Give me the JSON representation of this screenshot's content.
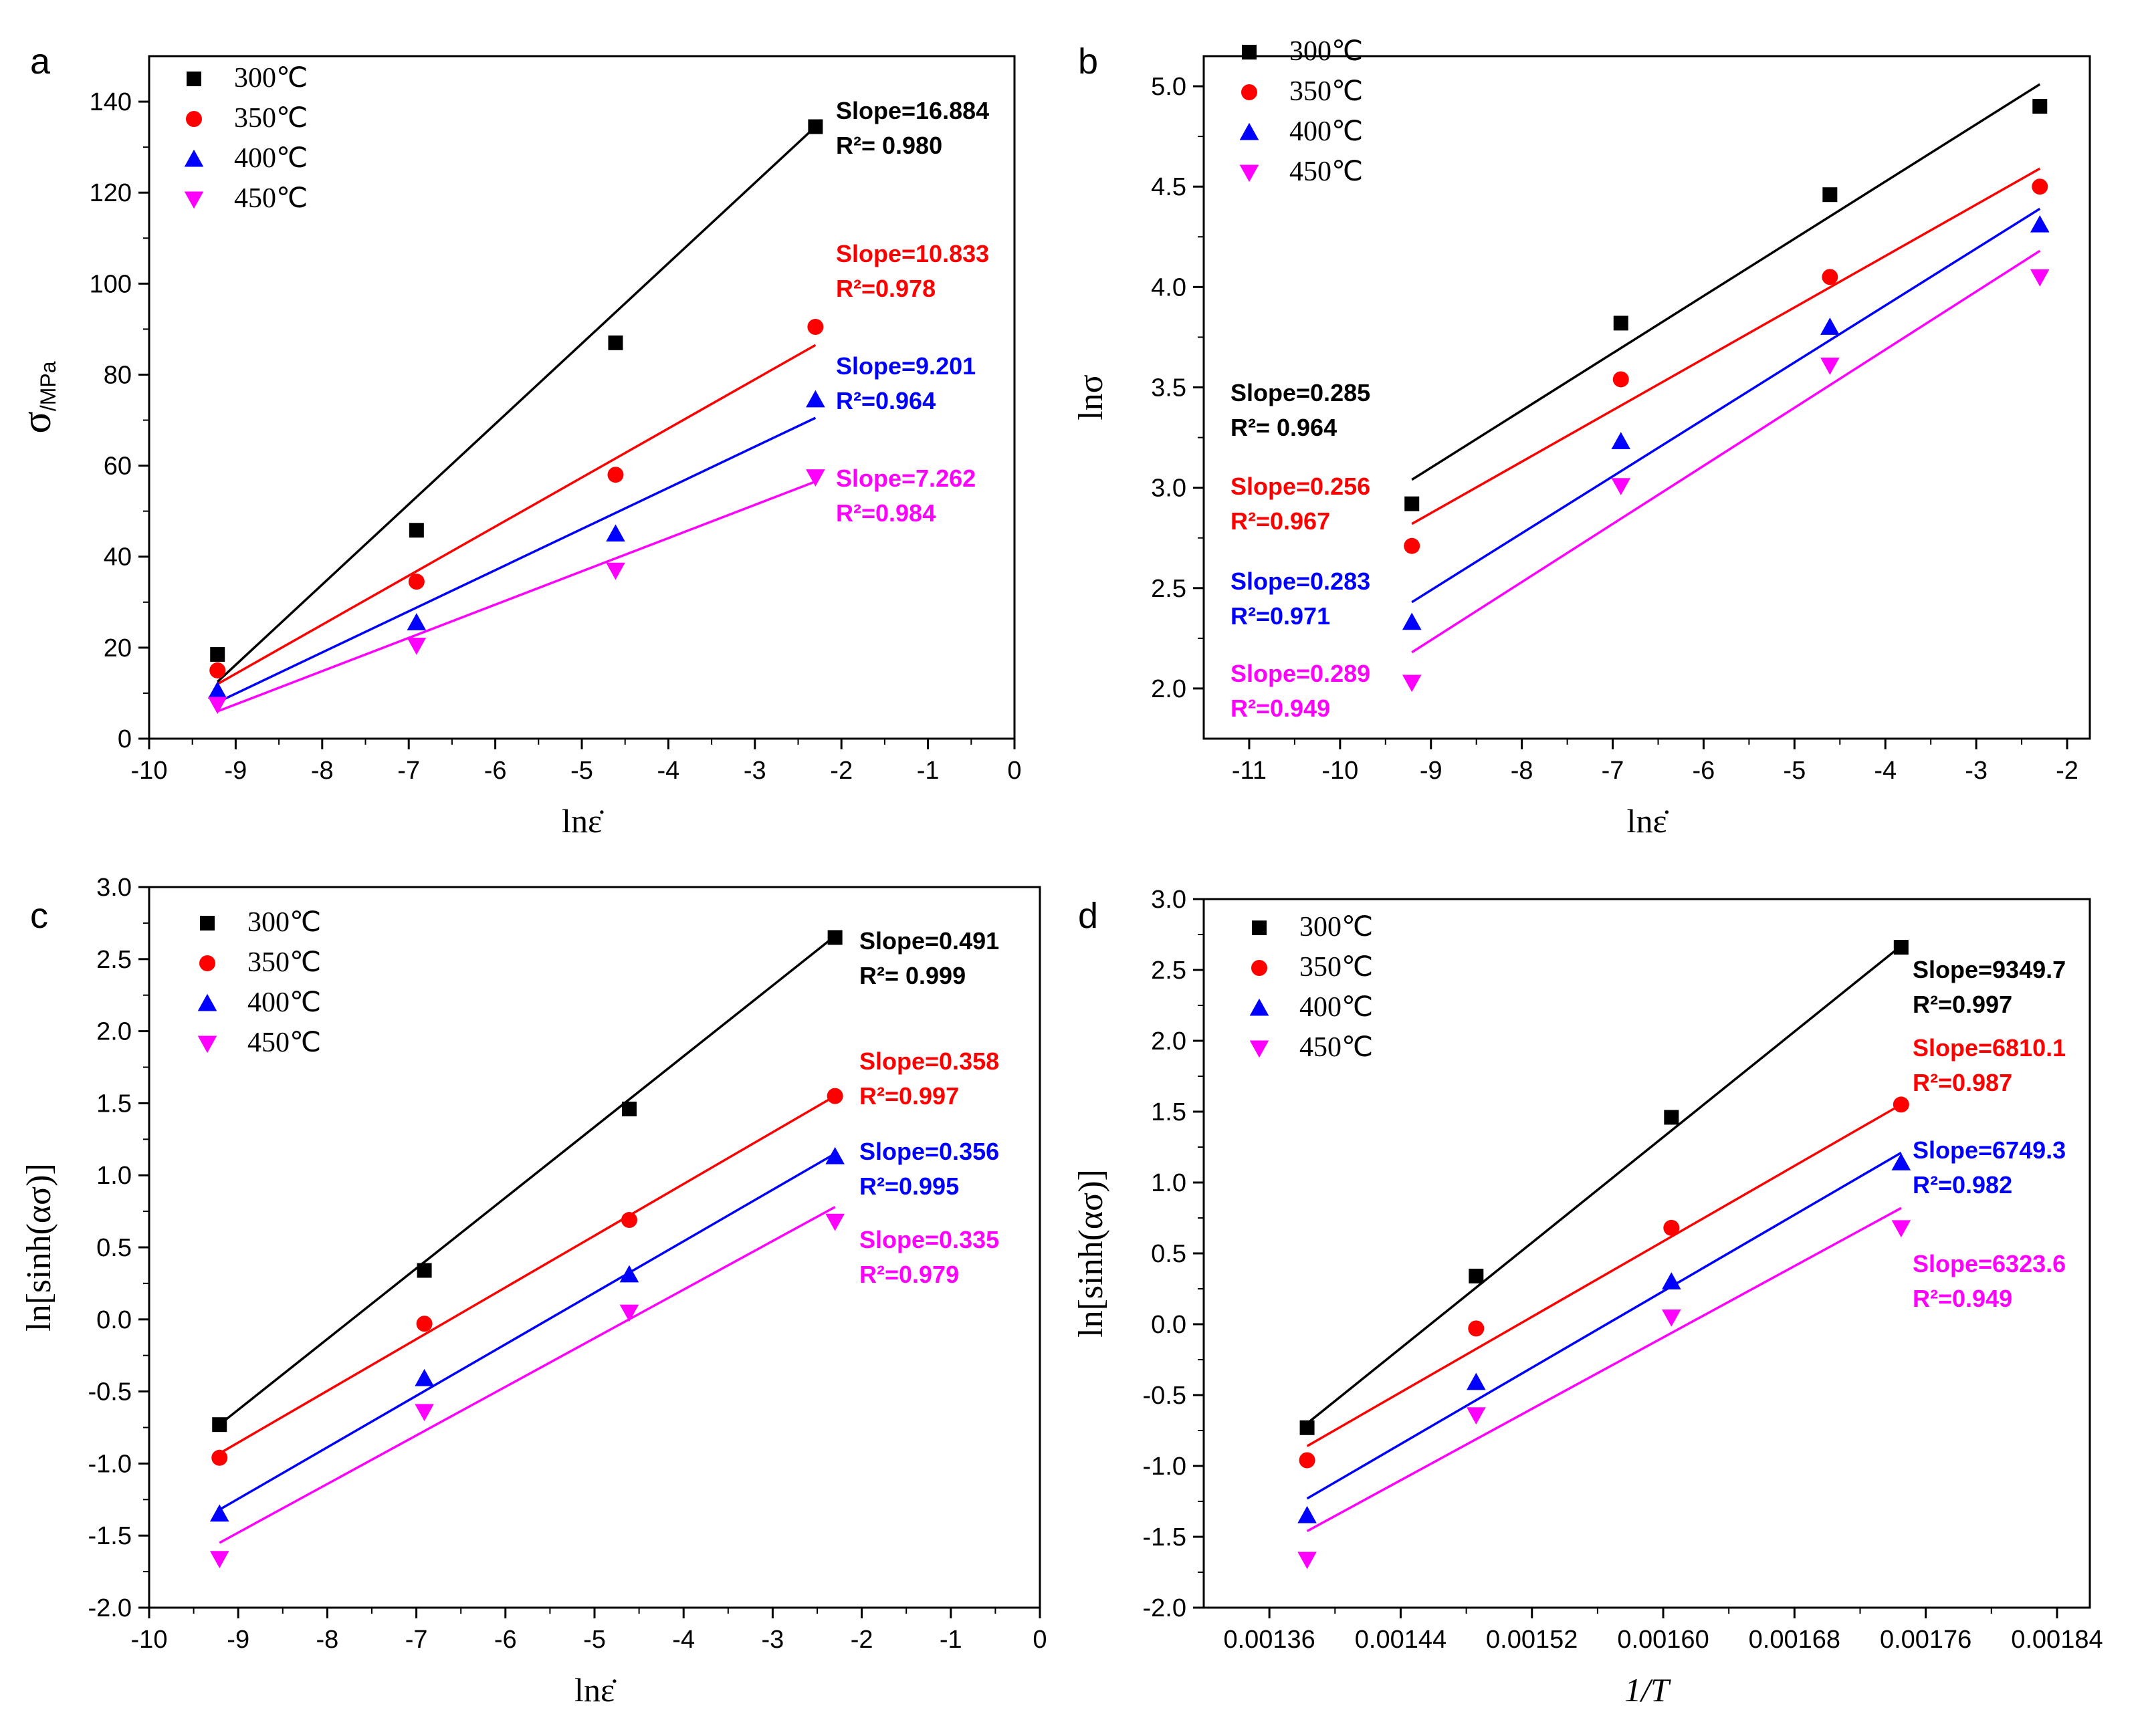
{
  "chart_data": [
    {
      "panel_label": "a",
      "type": "scatter",
      "xlabel": "lnε̇",
      "ylabel_main": "σ",
      "ylabel_unit": "/MPa",
      "xlim": [
        -10,
        0
      ],
      "ylim": [
        0,
        150
      ],
      "xticks": [
        -10,
        -9,
        -8,
        -7,
        -6,
        -5,
        -4,
        -3,
        -2,
        -1,
        0
      ],
      "yticks": [
        0,
        20,
        40,
        60,
        80,
        100,
        120,
        140
      ],
      "legend": [
        "300℃",
        "350℃",
        "400℃",
        "450℃"
      ],
      "series": [
        {
          "name": "300℃",
          "color": "#000000",
          "marker": "square",
          "x": [
            -9.21,
            -6.91,
            -4.61,
            -2.3
          ],
          "y": [
            18.5,
            45.8,
            87.0,
            134.5
          ],
          "fit": [
            [
              -9.21,
              12.5
            ],
            [
              -2.3,
              134.5
            ]
          ],
          "slope_label": "Slope=16.884",
          "r2_label": "R²= 0.980"
        },
        {
          "name": "350℃",
          "color": "#ff0000",
          "marker": "circle",
          "x": [
            -9.21,
            -6.91,
            -4.61,
            -2.3
          ],
          "y": [
            15.0,
            34.5,
            58.0,
            90.5
          ],
          "fit": [
            [
              -9.21,
              12.0
            ],
            [
              -2.3,
              86.5
            ]
          ],
          "slope_label": "Slope=10.833",
          "r2_label": "R²=0.978"
        },
        {
          "name": "400℃",
          "color": "#0000ff",
          "marker": "triangle-up",
          "x": [
            -9.21,
            -6.91,
            -4.61,
            -2.3
          ],
          "y": [
            10.5,
            25.5,
            45.0,
            74.5
          ],
          "fit": [
            [
              -9.21,
              8.0
            ],
            [
              -2.3,
              70.5
            ]
          ],
          "slope_label": "Slope=9.201",
          "r2_label": "R²=0.964"
        },
        {
          "name": "450℃",
          "color": "#ff00ff",
          "marker": "triangle-down",
          "x": [
            -9.21,
            -6.91,
            -4.61,
            -2.3
          ],
          "y": [
            7.5,
            20.5,
            37.0,
            57.5
          ],
          "fit": [
            [
              -9.21,
              6.0
            ],
            [
              -2.3,
              56.5
            ]
          ],
          "slope_label": "Slope=7.262",
          "r2_label": "R²=0.984"
        }
      ]
    },
    {
      "panel_label": "b",
      "type": "scatter",
      "xlabel": "lnε̇",
      "ylabel_main": "lnσ",
      "ylabel_unit": "",
      "xlim": [
        -11.5,
        -1.75
      ],
      "ylim": [
        1.75,
        5.15
      ],
      "xticks": [
        -11,
        -10,
        -9,
        -8,
        -7,
        -6,
        -5,
        -4,
        -3,
        -2
      ],
      "yticks": [
        2.0,
        2.5,
        3.0,
        3.5,
        4.0,
        4.5,
        5.0
      ],
      "legend": [
        "300℃",
        "350℃",
        "400℃",
        "450℃"
      ],
      "series": [
        {
          "name": "300℃",
          "color": "#000000",
          "marker": "square",
          "x": [
            -9.21,
            -6.91,
            -4.61,
            -2.3
          ],
          "y": [
            2.92,
            3.82,
            4.46,
            4.9
          ],
          "fit": [
            [
              -9.21,
              3.04
            ],
            [
              -2.3,
              5.01
            ]
          ],
          "slope_label": "Slope=0.285",
          "r2_label": "R²= 0.964"
        },
        {
          "name": "350℃",
          "color": "#ff0000",
          "marker": "circle",
          "x": [
            -9.21,
            -6.91,
            -4.61,
            -2.3
          ],
          "y": [
            2.71,
            3.54,
            4.05,
            4.5
          ],
          "fit": [
            [
              -9.21,
              2.82
            ],
            [
              -2.3,
              4.59
            ]
          ],
          "slope_label": "Slope=0.256",
          "r2_label": "R²=0.967"
        },
        {
          "name": "400℃",
          "color": "#0000ff",
          "marker": "triangle-up",
          "x": [
            -9.21,
            -6.91,
            -4.61,
            -2.3
          ],
          "y": [
            2.33,
            3.23,
            3.8,
            4.31
          ],
          "fit": [
            [
              -9.21,
              2.43
            ],
            [
              -2.3,
              4.39
            ]
          ],
          "slope_label": "Slope=0.283",
          "r2_label": "R²=0.971"
        },
        {
          "name": "450℃",
          "color": "#ff00ff",
          "marker": "triangle-down",
          "x": [
            -9.21,
            -6.91,
            -4.61,
            -2.3
          ],
          "y": [
            2.03,
            3.01,
            3.61,
            4.05
          ],
          "fit": [
            [
              -9.21,
              2.18
            ],
            [
              -2.3,
              4.18
            ]
          ],
          "slope_label": "Slope=0.289",
          "r2_label": "R²=0.949"
        }
      ]
    },
    {
      "panel_label": "c",
      "type": "scatter",
      "xlabel": "lnε̇",
      "ylabel_main": "ln[sinh(ασ)]",
      "ylabel_unit": "",
      "xlim": [
        -10,
        0
      ],
      "ylim": [
        -2.0,
        3.0
      ],
      "xticks": [
        -10,
        -9,
        -8,
        -7,
        -6,
        -5,
        -4,
        -3,
        -2,
        -1,
        0
      ],
      "yticks": [
        -2.0,
        -1.5,
        -1.0,
        -0.5,
        0.0,
        0.5,
        1.0,
        1.5,
        2.0,
        2.5,
        3.0
      ],
      "legend": [
        "300℃",
        "350℃",
        "400℃",
        "450℃"
      ],
      "series": [
        {
          "name": "300℃",
          "color": "#000000",
          "marker": "square",
          "x": [
            -9.21,
            -6.91,
            -4.61,
            -2.3
          ],
          "y": [
            -0.73,
            0.34,
            1.46,
            2.65
          ],
          "fit": [
            [
              -9.21,
              -0.73
            ],
            [
              -2.3,
              2.66
            ]
          ],
          "slope_label": "Slope=0.491",
          "r2_label": "R²= 0.999"
        },
        {
          "name": "350℃",
          "color": "#ff0000",
          "marker": "circle",
          "x": [
            -9.21,
            -6.91,
            -4.61,
            -2.3
          ],
          "y": [
            -0.96,
            -0.03,
            0.69,
            1.55
          ],
          "fit": [
            [
              -9.21,
              -0.93
            ],
            [
              -2.3,
              1.55
            ]
          ],
          "slope_label": "Slope=0.358",
          "r2_label": "R²=0.997"
        },
        {
          "name": "400℃",
          "color": "#0000ff",
          "marker": "triangle-up",
          "x": [
            -9.21,
            -6.91,
            -4.61,
            -2.3
          ],
          "y": [
            -1.35,
            -0.41,
            0.31,
            1.13
          ],
          "fit": [
            [
              -9.21,
              -1.32
            ],
            [
              -2.3,
              1.15
            ]
          ],
          "slope_label": "Slope=0.356",
          "r2_label": "R²=0.995"
        },
        {
          "name": "450℃",
          "color": "#ff00ff",
          "marker": "triangle-down",
          "x": [
            -9.21,
            -6.91,
            -4.61,
            -2.3
          ],
          "y": [
            -1.66,
            -0.64,
            0.05,
            0.68
          ],
          "fit": [
            [
              -9.21,
              -1.55
            ],
            [
              -2.3,
              0.78
            ]
          ],
          "slope_label": "Slope=0.335",
          "r2_label": "R²=0.979"
        }
      ]
    },
    {
      "panel_label": "d",
      "type": "scatter",
      "xlabel": "1/T",
      "ylabel_main": "ln[sinh(ασ)]",
      "ylabel_unit": "",
      "xlim": [
        0.00132,
        0.00186
      ],
      "ylim": [
        -2.0,
        3.0
      ],
      "xticks": [
        0.00136,
        0.00144,
        0.00152,
        0.0016,
        0.00168,
        0.00176,
        0.00184
      ],
      "xtick_labels": [
        "0.00136",
        "0.00144",
        "0.00152",
        "0.00160",
        "0.00168",
        "0.00176",
        "0.00184"
      ],
      "yticks": [
        -2.0,
        -1.5,
        -1.0,
        -0.5,
        0.0,
        0.5,
        1.0,
        1.5,
        2.0,
        2.5,
        3.0
      ],
      "legend": [
        "300℃",
        "350℃",
        "400℃",
        "450℃"
      ],
      "series": [
        {
          "name": "300℃",
          "color": "#000000",
          "marker": "square",
          "x": [
            0.001383,
            0.001486,
            0.001605,
            0.001745
          ],
          "y": [
            -0.73,
            0.34,
            1.46,
            2.66
          ],
          "fit": [
            [
              0.001383,
              -0.7
            ],
            [
              0.001745,
              2.67
            ]
          ],
          "slope_label": "Slope=9349.7",
          "r2_label": "R²=0.997"
        },
        {
          "name": "350℃",
          "color": "#ff0000",
          "marker": "circle",
          "x": [
            0.001383,
            0.001486,
            0.001605,
            0.001745
          ],
          "y": [
            -0.96,
            -0.03,
            0.68,
            1.55
          ],
          "fit": [
            [
              0.001383,
              -0.86
            ],
            [
              0.001745,
              1.55
            ]
          ],
          "slope_label": "Slope=6810.1",
          "r2_label": "R²=0.987"
        },
        {
          "name": "400℃",
          "color": "#0000ff",
          "marker": "triangle-up",
          "x": [
            0.001383,
            0.001486,
            0.001605,
            0.001745
          ],
          "y": [
            -1.35,
            -0.41,
            0.3,
            1.14
          ],
          "fit": [
            [
              0.001383,
              -1.23
            ],
            [
              0.001745,
              1.21
            ]
          ],
          "slope_label": "Slope=6749.3",
          "r2_label": "R²=0.982"
        },
        {
          "name": "450℃",
          "color": "#ff00ff",
          "marker": "triangle-down",
          "x": [
            0.001383,
            0.001486,
            0.001605,
            0.001745
          ],
          "y": [
            -1.66,
            -0.64,
            0.05,
            0.68
          ],
          "fit": [
            [
              0.001383,
              -1.46
            ],
            [
              0.001745,
              0.82
            ]
          ],
          "slope_label": "Slope=6323.6",
          "r2_label": "R²=0.949"
        }
      ]
    }
  ]
}
